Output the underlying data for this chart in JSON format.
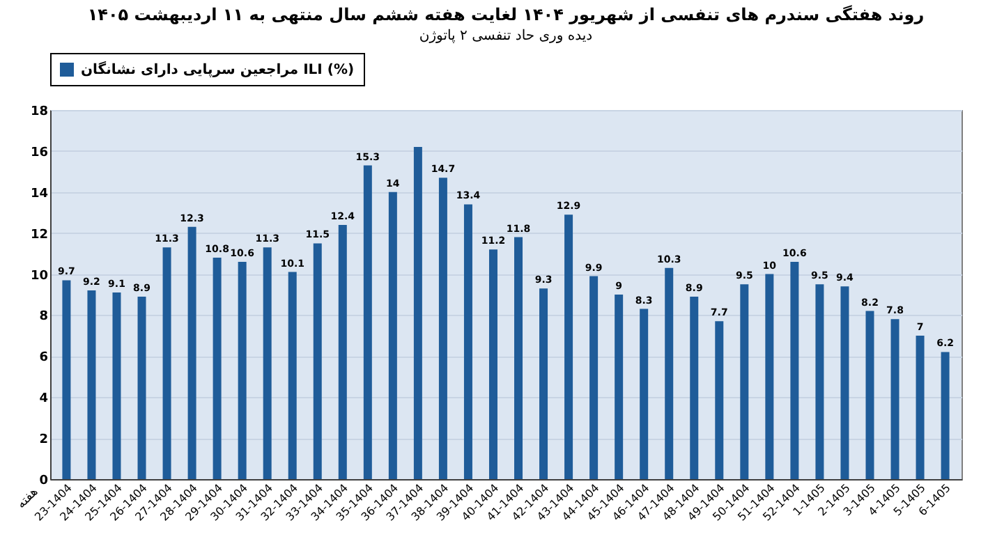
{
  "chart_data": {
    "type": "bar",
    "title": "روند هفتگی سندرم های تنفسی از شهریور ۱۴۰۴ لغایت هفته ششم سال منتهی به ۱۱ اردیبهشت ۱۴۰۵",
    "subtitle": "دیده وری حاد تنفسی ۲ پاتوژن",
    "xlabel": "هفته",
    "categories": [
      "23-1404",
      "24-1404",
      "25-1404",
      "26-1404",
      "27-1404",
      "28-1404",
      "29-1404",
      "30-1404",
      "31-1404",
      "32-1404",
      "33-1404",
      "34-1404",
      "35-1404",
      "36-1404",
      "37-1404",
      "38-1404",
      "39-1404",
      "40-1404",
      "41-1404",
      "42-1404",
      "43-1404",
      "44-1404",
      "45-1404",
      "46-1404",
      "47-1404",
      "48-1404",
      "49-1404",
      "50-1404",
      "51-1404",
      "52-1404",
      "1-1405",
      "2-1405",
      "3-1405",
      "4-1405",
      "5-1405",
      "6-1405"
    ],
    "series": [
      {
        "name": "مراجعین سرپایی دارای نشانگان ILI (%)",
        "color": "#1f5c99",
        "values": [
          9.7,
          9.2,
          9.1,
          8.9,
          11.3,
          12.3,
          10.8,
          10.6,
          11.3,
          10.1,
          11.5,
          12.4,
          15.3,
          14,
          16.2,
          14.7,
          13.4,
          11.2,
          11.8,
          9.3,
          12.9,
          9.9,
          9,
          8.3,
          10.3,
          8.9,
          7.7,
          9.5,
          10,
          10.6,
          9.5,
          9.4,
          8.2,
          7.8,
          7,
          6.2
        ],
        "value_labels": [
          "9.7",
          "9.2",
          "9.1",
          "8.9",
          "11.3",
          "12.3",
          "10.8",
          "10.6",
          "11.3",
          "10.1",
          "11.5",
          "12.4",
          "15.3",
          "14",
          null,
          "14.7",
          "13.4",
          "11.2",
          "11.8",
          "9.3",
          "12.9",
          "9.9",
          "9",
          "8.3",
          "10.3",
          "8.9",
          "7.7",
          "9.5",
          "10",
          "10.6",
          "9.5",
          "9.4",
          "8.2",
          "7.8",
          "7",
          "6.2"
        ]
      }
    ],
    "ylim": [
      0,
      18
    ],
    "yticks": [
      0,
      2,
      4,
      6,
      8,
      10,
      12,
      14,
      16,
      18
    ],
    "grid": "y",
    "legend": "top"
  }
}
